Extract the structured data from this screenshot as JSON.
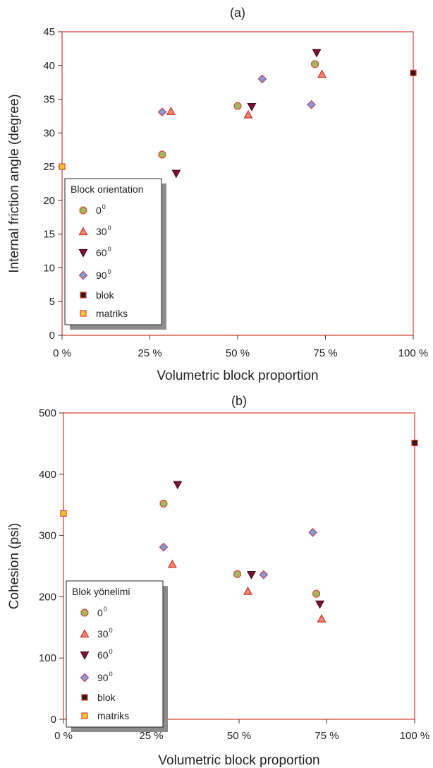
{
  "colors": {
    "frame": "#d9453a",
    "o0_fill": "#a3b85c",
    "o0_stroke": "#d9453a",
    "o30_fill": "#f0866f",
    "o30_stroke": "#c9352b",
    "o60_fill": "#7a1238",
    "o60_stroke": "#4a0a22",
    "o90_fill": "#7f9fd6",
    "o90_stroke": "#c93a5a",
    "blok_fill": "#3a1414",
    "blok_stroke": "#d9453a",
    "matriks_fill": "#f5c42c",
    "matriks_stroke": "#d9453a"
  },
  "chart_data": [
    {
      "type": "scatter",
      "title": "(a)",
      "xlabel": "Volumetric block proportion",
      "ylabel": "Internal friction angle (degree)",
      "xlim": [
        0,
        100
      ],
      "ylim": [
        0,
        45
      ],
      "xticks": [
        0,
        25,
        50,
        75,
        100
      ],
      "xtick_labels": [
        "0 %",
        "25 %",
        "50 %",
        "75 %",
        "100 %"
      ],
      "yticks": [
        0,
        5,
        10,
        15,
        20,
        25,
        30,
        35,
        40,
        45
      ],
      "ytick_labels": [
        "0",
        "5",
        "10",
        "15",
        "20",
        "25",
        "30",
        "35",
        "40",
        "45"
      ],
      "grid": false,
      "legend": {
        "title": "Block orientation",
        "placement": "lower-left",
        "entries": [
          {
            "label": "0",
            "sup": "0",
            "series": "o0"
          },
          {
            "label": "30",
            "sup": "0",
            "series": "o30"
          },
          {
            "label": "60",
            "sup": "0",
            "series": "o60"
          },
          {
            "label": "90",
            "sup": "0",
            "series": "o90"
          },
          {
            "label": "blok",
            "sup": "",
            "series": "blok"
          },
          {
            "label": "matriks",
            "sup": "",
            "series": "matriks"
          }
        ]
      },
      "series": [
        {
          "key": "o0",
          "marker": "octagon",
          "points": [
            [
              28.5,
              26.8
            ],
            [
              50,
              34
            ],
            [
              72,
              40.2
            ]
          ]
        },
        {
          "key": "o30",
          "marker": "triangle-up",
          "points": [
            [
              31,
              33.2
            ],
            [
              53,
              32.7
            ],
            [
              74,
              38.7
            ]
          ]
        },
        {
          "key": "o60",
          "marker": "triangle-down",
          "points": [
            [
              32.5,
              24
            ],
            [
              54,
              33.9
            ],
            [
              72.5,
              41.9
            ]
          ]
        },
        {
          "key": "o90",
          "marker": "diamond",
          "points": [
            [
              28.5,
              33.1
            ],
            [
              57,
              38
            ],
            [
              71,
              34.2
            ]
          ]
        },
        {
          "key": "blok",
          "marker": "square",
          "points": [
            [
              100,
              38.9
            ]
          ]
        },
        {
          "key": "matriks",
          "marker": "square",
          "points": [
            [
              0,
              25
            ]
          ]
        }
      ]
    },
    {
      "type": "scatter",
      "title": "(b)",
      "xlabel": "Volumetric block proportion",
      "ylabel": "Cohesion (psi)",
      "xlim": [
        0,
        100
      ],
      "ylim": [
        0,
        500
      ],
      "xticks": [
        0,
        25,
        50,
        75,
        100
      ],
      "xtick_labels": [
        "0 %",
        "25 %",
        "50 %",
        "75 %",
        "100 %"
      ],
      "yticks": [
        0,
        100,
        200,
        300,
        400,
        500
      ],
      "ytick_labels": [
        "0",
        "100",
        "200",
        "300",
        "400",
        "500"
      ],
      "grid": false,
      "legend": {
        "title": "Blok yönelimi",
        "placement": "lower-left",
        "entries": [
          {
            "label": "0",
            "sup": "0",
            "series": "o0"
          },
          {
            "label": "30",
            "sup": "0",
            "series": "o30"
          },
          {
            "label": "60",
            "sup": "0",
            "series": "o60"
          },
          {
            "label": "90",
            "sup": "0",
            "series": "o90"
          },
          {
            "label": "blok",
            "sup": "",
            "series": "blok"
          },
          {
            "label": "matriks",
            "sup": "",
            "series": "matriks"
          }
        ]
      },
      "series": [
        {
          "key": "o0",
          "marker": "octagon",
          "points": [
            [
              28.5,
              352
            ],
            [
              49.5,
              237
            ],
            [
              72,
              205
            ]
          ]
        },
        {
          "key": "o30",
          "marker": "triangle-up",
          "points": [
            [
              31,
              253
            ],
            [
              52.5,
              209
            ],
            [
              73.5,
              164
            ]
          ]
        },
        {
          "key": "o60",
          "marker": "triangle-down",
          "points": [
            [
              32.5,
              383
            ],
            [
              53.5,
              236
            ],
            [
              73,
              188
            ]
          ]
        },
        {
          "key": "o90",
          "marker": "diamond",
          "points": [
            [
              28.5,
              281
            ],
            [
              57,
              236
            ],
            [
              71,
              305
            ]
          ]
        },
        {
          "key": "blok",
          "marker": "square",
          "points": [
            [
              100,
              451
            ]
          ]
        },
        {
          "key": "matriks",
          "marker": "square",
          "points": [
            [
              0,
              336
            ]
          ]
        }
      ]
    }
  ]
}
